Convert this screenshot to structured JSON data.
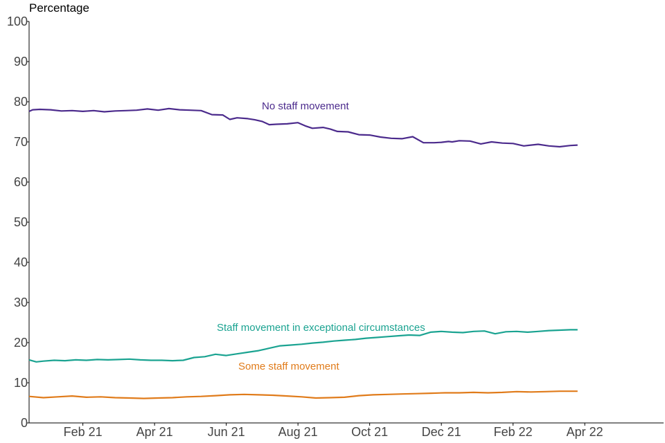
{
  "chart_data": {
    "type": "line",
    "title": "",
    "ylabel": "Percentage",
    "xlabel": "",
    "ylim": [
      0,
      100
    ],
    "yticks": [
      0,
      10,
      20,
      30,
      40,
      50,
      60,
      70,
      80,
      90,
      100
    ],
    "x_domain_months": [
      0,
      15.4
    ],
    "x_origin": "Jan 2021 (month 0)",
    "xticks": [
      {
        "label": "Feb 21",
        "month": 1.5
      },
      {
        "label": "Apr 21",
        "month": 3.5
      },
      {
        "label": "Jun 21",
        "month": 5.5
      },
      {
        "label": "Aug 21",
        "month": 7.5
      },
      {
        "label": "Oct 21",
        "month": 9.5
      },
      {
        "label": "Dec 21",
        "month": 11.5
      },
      {
        "label": "Feb 22",
        "month": 13.5
      },
      {
        "label": "Apr 22",
        "month": 15.5
      }
    ],
    "grid": false,
    "series": [
      {
        "name": "No staff movement",
        "color": "#4b2a8c",
        "x": [
          0,
          0.1,
          0.3,
          0.6,
          0.9,
          1.2,
          1.5,
          1.8,
          2.1,
          2.4,
          2.7,
          3.0,
          3.3,
          3.6,
          3.9,
          4.2,
          4.5,
          4.8,
          5.1,
          5.4,
          5.6,
          5.8,
          6.1,
          6.3,
          6.5,
          6.7,
          6.9,
          7.2,
          7.5,
          7.7,
          7.9,
          8.2,
          8.4,
          8.6,
          8.9,
          9.2,
          9.5,
          9.8,
          10.1,
          10.4,
          10.7,
          11.0,
          11.3,
          11.5,
          11.7,
          11.8,
          12.0,
          12.3,
          12.6,
          12.9,
          13.2,
          13.5,
          13.8,
          14.0,
          14.2,
          14.5,
          14.8,
          15.1,
          15.3
        ],
        "values": [
          77.6,
          78.0,
          78.1,
          78.0,
          77.7,
          77.8,
          77.6,
          77.8,
          77.5,
          77.7,
          77.8,
          77.9,
          78.2,
          77.9,
          78.3,
          78.0,
          77.9,
          77.8,
          76.8,
          76.7,
          75.6,
          76.0,
          75.8,
          75.5,
          75.1,
          74.3,
          74.4,
          74.5,
          74.8,
          74.0,
          73.4,
          73.6,
          73.2,
          72.6,
          72.5,
          71.8,
          71.7,
          71.2,
          70.9,
          70.8,
          71.3,
          69.8,
          69.8,
          69.9,
          70.1,
          70.0,
          70.3,
          70.2,
          69.5,
          70.0,
          69.7,
          69.6,
          69.0,
          69.2,
          69.4,
          69.0,
          68.8,
          69.1,
          69.2
        ],
        "label": "No staff movement"
      },
      {
        "name": "Staff movement in exceptional circumstances",
        "color": "#1aa391",
        "x": [
          0,
          0.2,
          0.4,
          0.7,
          1.0,
          1.3,
          1.6,
          1.9,
          2.2,
          2.5,
          2.8,
          3.1,
          3.4,
          3.7,
          4.0,
          4.3,
          4.6,
          4.9,
          5.2,
          5.5,
          5.8,
          6.1,
          6.4,
          6.7,
          7.0,
          7.3,
          7.6,
          7.9,
          8.2,
          8.5,
          8.8,
          9.1,
          9.4,
          9.7,
          10.0,
          10.3,
          10.6,
          10.9,
          11.2,
          11.5,
          11.8,
          12.1,
          12.4,
          12.7,
          13.0,
          13.3,
          13.6,
          13.9,
          14.2,
          14.5,
          14.8,
          15.1,
          15.3
        ],
        "values": [
          15.7,
          15.2,
          15.4,
          15.6,
          15.5,
          15.7,
          15.6,
          15.8,
          15.7,
          15.8,
          15.9,
          15.7,
          15.6,
          15.6,
          15.5,
          15.6,
          16.3,
          16.5,
          17.1,
          16.8,
          17.2,
          17.6,
          18.0,
          18.6,
          19.2,
          19.4,
          19.6,
          19.9,
          20.1,
          20.4,
          20.6,
          20.8,
          21.1,
          21.3,
          21.5,
          21.7,
          21.9,
          21.8,
          22.6,
          22.8,
          22.6,
          22.5,
          22.8,
          22.9,
          22.2,
          22.7,
          22.8,
          22.6,
          22.8,
          23.0,
          23.1,
          23.2,
          23.2
        ],
        "label": "Staff movement in exceptional circumstances"
      },
      {
        "name": "Some staff movement",
        "color": "#e07b1a",
        "x": [
          0,
          0.4,
          0.8,
          1.2,
          1.6,
          2.0,
          2.4,
          2.8,
          3.2,
          3.6,
          4.0,
          4.4,
          4.8,
          5.2,
          5.6,
          6.0,
          6.4,
          6.8,
          7.2,
          7.6,
          8.0,
          8.4,
          8.8,
          9.2,
          9.6,
          10.0,
          10.4,
          10.8,
          11.2,
          11.6,
          12.0,
          12.4,
          12.8,
          13.2,
          13.6,
          14.0,
          14.4,
          14.8,
          15.3
        ],
        "values": [
          6.6,
          6.3,
          6.5,
          6.7,
          6.4,
          6.5,
          6.3,
          6.2,
          6.1,
          6.2,
          6.3,
          6.5,
          6.6,
          6.8,
          7.0,
          7.1,
          7.0,
          6.9,
          6.7,
          6.5,
          6.2,
          6.3,
          6.4,
          6.8,
          7.0,
          7.1,
          7.2,
          7.3,
          7.4,
          7.5,
          7.5,
          7.6,
          7.5,
          7.6,
          7.8,
          7.7,
          7.8,
          7.9,
          7.9
        ],
        "label": "Some staff movement"
      }
    ]
  }
}
